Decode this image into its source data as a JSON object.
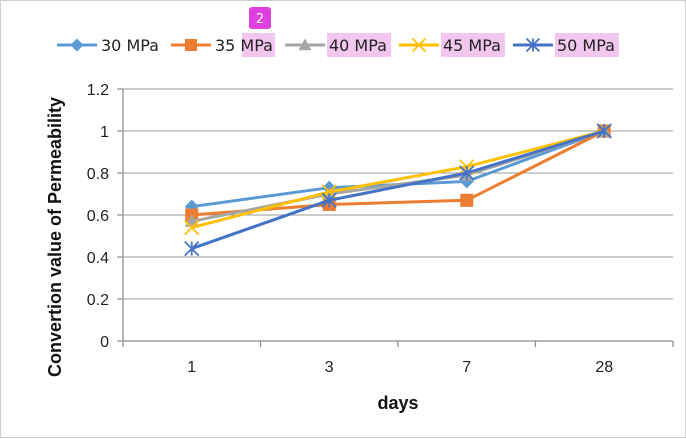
{
  "chart_data": {
    "type": "line",
    "categories": [
      "1",
      "3",
      "7",
      "28"
    ],
    "series": [
      {
        "name": "30 MPa",
        "color": "#5B9BD5",
        "marker": "diamond",
        "values": [
          0.64,
          0.73,
          0.76,
          1.0
        ]
      },
      {
        "name": "35 MPa",
        "color": "#ED7D31",
        "marker": "square",
        "values": [
          0.6,
          0.65,
          0.67,
          1.0
        ]
      },
      {
        "name": "40 MPa",
        "color": "#A5A5A5",
        "marker": "triangle",
        "values": [
          0.57,
          0.7,
          0.79,
          1.0
        ]
      },
      {
        "name": "45 MPa",
        "color": "#FFC000",
        "marker": "x",
        "values": [
          0.54,
          0.71,
          0.83,
          1.0
        ]
      },
      {
        "name": "50 MPa",
        "color": "#4472C4",
        "marker": "asterisk",
        "values": [
          0.44,
          0.67,
          0.8,
          1.0
        ]
      }
    ],
    "xlabel": "days",
    "ylabel": "Convertion value of Permeability",
    "ylim": [
      0,
      1.2
    ],
    "yticks": [
      "0",
      "0.2",
      "0.4",
      "0.6",
      "0.8",
      "1",
      "1.2"
    ],
    "grid": true,
    "legend_position": "top"
  },
  "annotation_badge": "2",
  "highlight_color": "#F3C6EE",
  "badge_color": "#E040E0"
}
